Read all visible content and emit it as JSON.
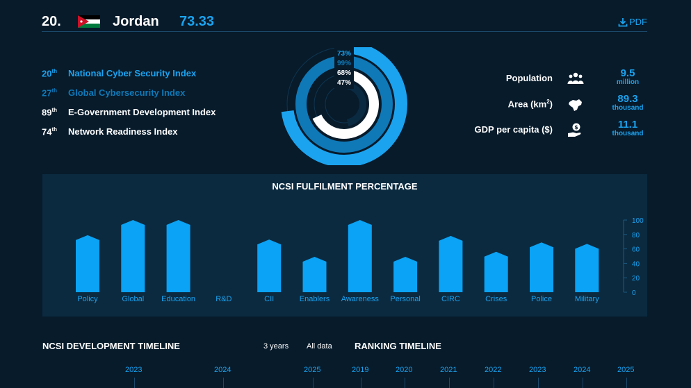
{
  "header": {
    "rank": "20.",
    "country": "Jordan",
    "score": "73.33",
    "pdf_label": "PDF"
  },
  "indices": [
    {
      "rank": "20",
      "suffix": "th",
      "label": "National Cyber Security Index",
      "color": "#1ba3ef"
    },
    {
      "rank": "27",
      "suffix": "th",
      "label": "Global Cybersecurity Index",
      "color": "#0f79b8"
    },
    {
      "rank": "89",
      "suffix": "th",
      "label": "E-Government Development Index",
      "color": "#ffffff"
    },
    {
      "rank": "74",
      "suffix": "th",
      "label": "Network Readiness Index",
      "color": "#ffffff"
    }
  ],
  "donut": {
    "rings": [
      {
        "label": "73%",
        "value": 73,
        "color": "#1ba3ef"
      },
      {
        "label": "99%",
        "value": 99,
        "color": "#0f79b8"
      },
      {
        "label": "68%",
        "value": 68,
        "color": "#ffffff"
      },
      {
        "label": "47%",
        "value": 47,
        "color": "#0a2a42"
      }
    ]
  },
  "stats": [
    {
      "label": "Population",
      "sup": "",
      "label_end": "",
      "icon": "people-icon",
      "value": "9.5",
      "unit": "million"
    },
    {
      "label": "Area (km",
      "sup": "2",
      "label_end": ")",
      "icon": "map-icon",
      "value": "89.3",
      "unit": "thousand"
    },
    {
      "label": "GDP per capita ($)",
      "sup": "",
      "label_end": "",
      "icon": "money-hand-icon",
      "value": "11.1",
      "unit": "thousand"
    }
  ],
  "chart_data": {
    "type": "bar",
    "title": "NCSI FULFILMENT PERCENTAGE",
    "categories": [
      "Policy",
      "Global",
      "Education",
      "R&D",
      "CII",
      "Enablers",
      "Awareness",
      "Personal",
      "CIRC",
      "Crises",
      "Police",
      "Military"
    ],
    "values": [
      79,
      100,
      100,
      0,
      73,
      49,
      100,
      49,
      78,
      56,
      69,
      67
    ],
    "yticks": [
      0,
      20,
      40,
      60,
      80,
      100
    ],
    "ylim": [
      0,
      100
    ],
    "bar_color": "#0aa3f5",
    "grid": false
  },
  "dev_timeline": {
    "title": "NCSI DEVELOPMENT TIMELINE",
    "range_options": [
      "3 years",
      "All data"
    ],
    "years": [
      "2023",
      "2024",
      "2025"
    ]
  },
  "ranking_timeline": {
    "title": "RANKING TIMELINE",
    "years": [
      "2019",
      "2020",
      "2021",
      "2022",
      "2023",
      "2024",
      "2025"
    ]
  }
}
